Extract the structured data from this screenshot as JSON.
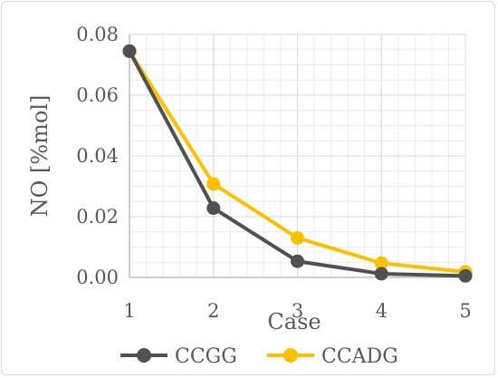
{
  "chart_data": {
    "type": "line",
    "title": "",
    "xlabel": "Case",
    "ylabel": "NO [%mol]",
    "x": [
      "1",
      "2",
      "3",
      "4",
      "5"
    ],
    "ylim": [
      0,
      0.08
    ],
    "yticks": [
      "0.00",
      "0.02",
      "0.04",
      "0.06",
      "0.08"
    ],
    "grid": true,
    "legend_position": "bottom",
    "series": [
      {
        "name": "CCGG",
        "color": "#505050",
        "values": [
          0.0745,
          0.0228,
          0.0053,
          0.0012,
          0.0005
        ]
      },
      {
        "name": "CCADG",
        "color": "#FFC000",
        "values": [
          0.0745,
          0.0308,
          0.013,
          0.0047,
          0.0018
        ]
      }
    ]
  }
}
